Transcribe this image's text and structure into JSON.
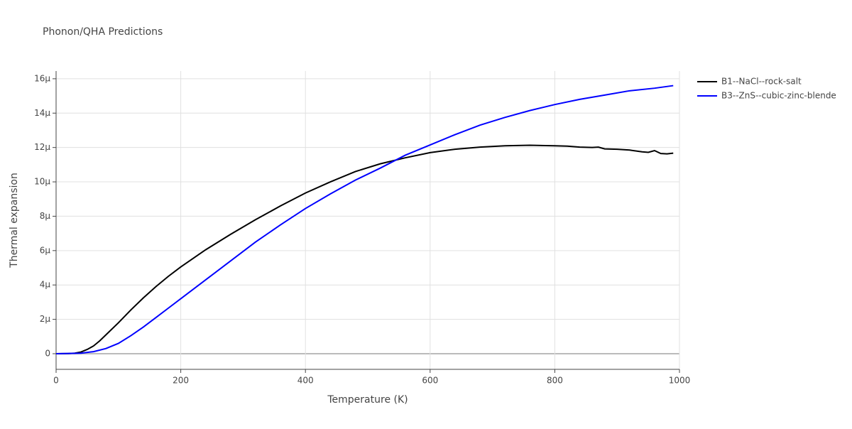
{
  "chart_data": {
    "type": "line",
    "title": "Phonon/QHA Predictions",
    "x_label": "Temperature (K)",
    "y_label": "Thermal expansion",
    "xlim": [
      0,
      1000
    ],
    "xticks": [
      0,
      200,
      400,
      600,
      800,
      1000
    ],
    "ylim": [
      -9.1e-07,
      1.645e-05
    ],
    "yticks": [
      0,
      {
        "value": 2e-06,
        "label": "2μ"
      },
      {
        "value": 4e-06,
        "label": "4μ"
      },
      {
        "value": 6e-06,
        "label": "6μ"
      },
      {
        "value": 8e-06,
        "label": "8μ"
      },
      {
        "value": 1e-05,
        "label": "10μ"
      },
      {
        "value": 1.2e-05,
        "label": "12μ"
      },
      {
        "value": 1.4e-05,
        "label": "14μ"
      },
      {
        "value": 1.6e-05,
        "label": "16μ"
      }
    ],
    "grid": true,
    "legend": "outside-right",
    "series": [
      {
        "name": "B1--NaCl--rock-salt",
        "color": "#000000",
        "x": [
          0,
          20,
          30,
          40,
          50,
          60,
          70,
          80,
          100,
          120,
          140,
          160,
          180,
          200,
          240,
          280,
          320,
          360,
          400,
          440,
          480,
          520,
          560,
          600,
          640,
          680,
          720,
          760,
          800,
          820,
          840,
          860,
          870,
          880,
          900,
          920,
          940,
          950,
          960,
          970,
          980,
          990
        ],
        "values": [
          0,
          1e-08,
          3e-08,
          1e-07,
          2.5e-07,
          4.5e-07,
          7.5e-07,
          1.1e-06,
          1.8e-06,
          2.55e-06,
          3.25e-06,
          3.9e-06,
          4.5e-06,
          5.05e-06,
          6.05e-06,
          6.95e-06,
          7.8e-06,
          8.6e-06,
          9.35e-06,
          1e-05,
          1.06e-05,
          1.105e-05,
          1.14e-05,
          1.17e-05,
          1.19e-05,
          1.202e-05,
          1.21e-05,
          1.213e-05,
          1.21e-05,
          1.208e-05,
          1.202e-05,
          1.2e-05,
          1.202e-05,
          1.192e-05,
          1.19e-05,
          1.185e-05,
          1.175e-05,
          1.172e-05,
          1.182e-05,
          1.165e-05,
          1.163e-05,
          1.167e-05
        ]
      },
      {
        "name": "B3--ZnS--cubic-zinc-blende",
        "color": "#0000ff",
        "x": [
          0,
          40,
          60,
          80,
          100,
          120,
          140,
          160,
          180,
          200,
          240,
          280,
          320,
          360,
          400,
          440,
          480,
          520,
          560,
          600,
          640,
          680,
          720,
          760,
          800,
          840,
          880,
          920,
          960,
          990
        ],
        "values": [
          0,
          3e-08,
          1.2e-07,
          3e-07,
          6e-07,
          1.05e-06,
          1.55e-06,
          2.1e-06,
          2.65e-06,
          3.2e-06,
          4.3e-06,
          5.4e-06,
          6.5e-06,
          7.5e-06,
          8.45e-06,
          9.3e-06,
          1.01e-05,
          1.08e-05,
          1.155e-05,
          1.215e-05,
          1.275e-05,
          1.33e-05,
          1.375e-05,
          1.415e-05,
          1.45e-05,
          1.48e-05,
          1.505e-05,
          1.53e-05,
          1.545e-05,
          1.56e-05
        ]
      }
    ]
  }
}
